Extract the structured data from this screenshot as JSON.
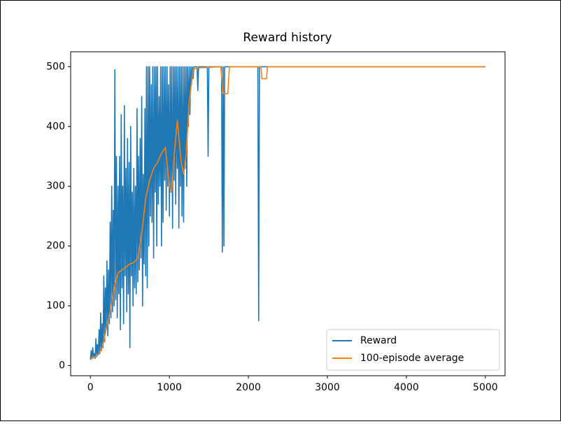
{
  "chart_data": {
    "type": "line",
    "title": "Reward history",
    "xlim": [
      -250,
      5249
    ],
    "xticks": [
      0,
      1000,
      2000,
      3000,
      4000,
      5000
    ],
    "ylim": [
      -17,
      525
    ],
    "yticks": [
      0,
      100,
      200,
      300,
      400,
      500
    ],
    "grid": false,
    "legend": "lower right",
    "series": [
      {
        "name": "Reward",
        "color": "#1f77b4",
        "x": [
          0,
          10,
          20,
          30,
          40,
          50,
          60,
          70,
          80,
          90,
          100,
          110,
          120,
          130,
          140,
          150,
          160,
          170,
          180,
          190,
          200,
          210,
          220,
          230,
          240,
          250,
          260,
          270,
          280,
          290,
          300,
          310,
          320,
          330,
          340,
          350,
          360,
          370,
          380,
          390,
          400,
          410,
          420,
          430,
          440,
          450,
          460,
          470,
          480,
          490,
          500,
          510,
          520,
          530,
          540,
          550,
          560,
          570,
          580,
          590,
          600,
          610,
          620,
          630,
          640,
          650,
          660,
          670,
          680,
          690,
          700,
          710,
          720,
          730,
          740,
          750,
          760,
          770,
          780,
          790,
          800,
          810,
          820,
          830,
          840,
          850,
          860,
          870,
          880,
          890,
          900,
          910,
          920,
          930,
          940,
          950,
          960,
          970,
          980,
          990,
          1000,
          1010,
          1020,
          1030,
          1040,
          1050,
          1060,
          1070,
          1080,
          1090,
          1100,
          1110,
          1120,
          1130,
          1140,
          1150,
          1160,
          1170,
          1180,
          1190,
          1200,
          1210,
          1220,
          1230,
          1240,
          1250,
          1260,
          1270,
          1280,
          1290,
          1300,
          1310,
          1350,
          1360,
          1370,
          1480,
          1490,
          1500,
          1660,
          1670,
          1680,
          1690,
          1700,
          2120,
          2130,
          2140,
          4999
        ],
        "values": [
          10,
          25,
          12,
          30,
          15,
          20,
          12,
          45,
          15,
          35,
          18,
          60,
          20,
          88,
          25,
          70,
          30,
          150,
          40,
          130,
          60,
          175,
          50,
          160,
          70,
          240,
          80,
          300,
          90,
          260,
          100,
          495,
          110,
          350,
          80,
          300,
          120,
          350,
          60,
          420,
          130,
          300,
          70,
          435,
          150,
          330,
          90,
          380,
          120,
          340,
          30,
          400,
          150,
          290,
          100,
          330,
          130,
          300,
          120,
          430,
          140,
          350,
          160,
          380,
          180,
          450,
          100,
          320,
          170,
          430,
          150,
          500,
          130,
          500,
          200,
          500,
          250,
          470,
          240,
          500,
          180,
          500,
          290,
          500,
          200,
          500,
          270,
          450,
          300,
          500,
          200,
          500,
          240,
          500,
          310,
          500,
          260,
          500,
          300,
          470,
          250,
          500,
          290,
          500,
          230,
          500,
          310,
          500,
          270,
          500,
          330,
          500,
          230,
          500,
          300,
          500,
          250,
          500,
          240,
          500,
          330,
          500,
          300,
          500,
          400,
          500,
          420,
          500,
          470,
          500,
          480,
          500,
          500,
          460,
          500,
          500,
          350,
          500,
          500,
          190,
          500,
          200,
          500,
          500,
          75,
          500,
          500
        ]
      },
      {
        "name": "100-episode average",
        "color": "#ff7f0e",
        "x": [
          0,
          100,
          150,
          200,
          250,
          300,
          350,
          400,
          450,
          500,
          550,
          600,
          650,
          700,
          750,
          800,
          850,
          900,
          950,
          1000,
          1030,
          1060,
          1100,
          1150,
          1180,
          1210,
          1250,
          1300,
          1350,
          1650,
          1680,
          1740,
          1760,
          2160,
          2170,
          2230,
          2240,
          4999
        ],
        "values": [
          10,
          18,
          30,
          60,
          90,
          130,
          155,
          160,
          165,
          170,
          172,
          180,
          220,
          280,
          310,
          330,
          340,
          355,
          365,
          300,
          290,
          350,
          410,
          340,
          320,
          350,
          440,
          495,
          498,
          500,
          455,
          455,
          500,
          500,
          480,
          480,
          500,
          500
        ]
      }
    ]
  }
}
